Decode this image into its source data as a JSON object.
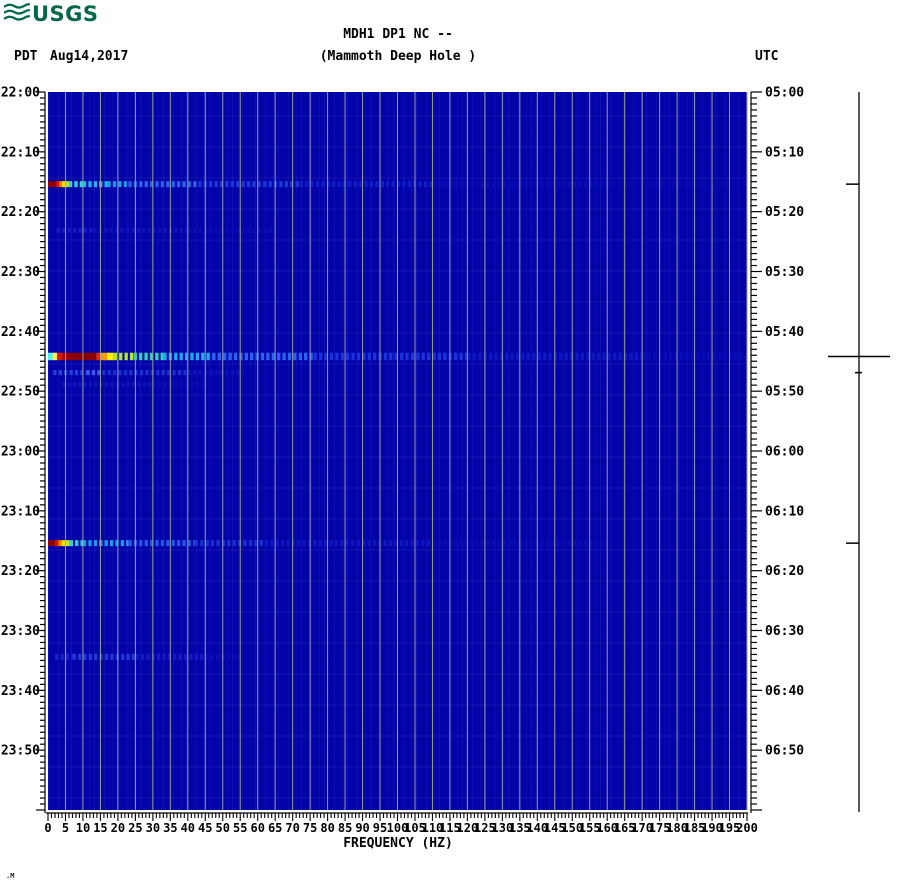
{
  "header": {
    "logo_text": "USGS",
    "tz_left": "PDT",
    "date": "Aug14,2017",
    "title_line1": "MDH1 DP1 NC --",
    "title_line2": "(Mammoth Deep Hole )",
    "tz_right": "UTC"
  },
  "footer": {
    "xaxis_label": "FREQUENCY (HZ)",
    "corner_mark": ".M"
  },
  "colors": {
    "usgs_green": "#00684a",
    "plot_background": "#0303ab",
    "gridline": "#98a098",
    "axis": "#000000"
  },
  "chart_data": {
    "type": "heatmap",
    "title": "MDH1 DP1 NC -- (Mammoth Deep Hole )",
    "xlabel": "FREQUENCY (HZ)",
    "x_range_hz": [
      0,
      200
    ],
    "x_major_tick_step_hz": 5,
    "x_minor_tick_step_hz": 1,
    "x_tick_labels": [
      "0",
      "5",
      "10",
      "15",
      "20",
      "25",
      "30",
      "35",
      "40",
      "45",
      "50",
      "55",
      "60",
      "65",
      "70",
      "75",
      "80",
      "85",
      "90",
      "95",
      "100",
      "105",
      "110",
      "115",
      "120",
      "125",
      "130",
      "135",
      "140",
      "145",
      "150",
      "155",
      "160",
      "165",
      "170",
      "175",
      "180",
      "185",
      "190",
      "195",
      "200"
    ],
    "time_span_minutes": 120,
    "minor_tick_minutes": 1,
    "major_tick_minutes": 10,
    "left_time_labels": [
      "22:00",
      "22:10",
      "22:20",
      "22:30",
      "22:40",
      "22:50",
      "23:00",
      "23:10",
      "23:20",
      "23:30",
      "23:40",
      "23:50"
    ],
    "right_time_labels": [
      "05:00",
      "05:10",
      "05:20",
      "05:30",
      "05:40",
      "05:50",
      "06:00",
      "06:10",
      "06:20",
      "06:30",
      "06:40",
      "06:50"
    ],
    "grid_vertical_every_hz": 5,
    "events": [
      {
        "time_pdt": "22:15",
        "time_utc": "05:15",
        "minutes": 15.4,
        "height": 6,
        "segments": [
          {
            "from": 0,
            "to": 2.3,
            "color": "#8b0000",
            "striped": false
          },
          {
            "from": 2.3,
            "to": 3.2,
            "color": "#d31300",
            "striped": false
          },
          {
            "from": 3.2,
            "to": 4.0,
            "color": "#ff7a00",
            "striped": false
          },
          {
            "from": 4.0,
            "to": 4.9,
            "color": "#ffe400",
            "striped": false
          },
          {
            "from": 4.9,
            "to": 6.0,
            "color": "#a8e83c",
            "striped": false
          },
          {
            "from": 6,
            "to": 10,
            "color": "#2ed4d8",
            "striped": true
          },
          {
            "from": 10,
            "to": 17,
            "color": "#22b4f4",
            "striped": true
          },
          {
            "from": 17,
            "to": 23,
            "color": "#1e96ea",
            "striped": true
          },
          {
            "from": 23,
            "to": 43,
            "color": "#2b62e8",
            "striped": true
          },
          {
            "from": 43,
            "to": 72,
            "color": "#1c38d8",
            "striped": true
          },
          {
            "from": 72,
            "to": 110,
            "color": "#111cc6",
            "striped": true
          },
          {
            "from": 110,
            "to": 160,
            "color": "#0a0db6",
            "striped": true
          },
          {
            "from": 160,
            "to": 200,
            "color": "#0708b0",
            "striped": true
          }
        ]
      },
      {
        "time_pdt": "22:23",
        "time_utc": "05:23",
        "minutes": 23.1,
        "height": 5,
        "segments": [
          {
            "from": 2.5,
            "to": 13,
            "color": "#171ac6",
            "striped": true
          },
          {
            "from": 13,
            "to": 40,
            "color": "#0f12bc",
            "striped": true
          },
          {
            "from": 40,
            "to": 65,
            "color": "#0a0cb2",
            "striped": true
          }
        ]
      },
      {
        "time_pdt": "22:44",
        "time_utc": "05:44",
        "minutes": 44.2,
        "height": 7.5,
        "segments": [
          {
            "from": 0,
            "to": 1.3,
            "color": "#55ecf4",
            "striped": false
          },
          {
            "from": 1.3,
            "to": 2.6,
            "color": "#ffee44",
            "striped": false
          },
          {
            "from": 2.6,
            "to": 4.2,
            "color": "#de1600",
            "striped": false
          },
          {
            "from": 4.2,
            "to": 6,
            "color": "#a40000",
            "striped": false
          },
          {
            "from": 6,
            "to": 13.8,
            "color": "#8b0000",
            "striped": false
          },
          {
            "from": 13.8,
            "to": 15,
            "color": "#e82400",
            "striped": false
          },
          {
            "from": 15,
            "to": 16.8,
            "color": "#ff9a00",
            "striped": false
          },
          {
            "from": 16.8,
            "to": 18.8,
            "color": "#ffee00",
            "striped": false
          },
          {
            "from": 18.8,
            "to": 24.5,
            "color": "#b2e632",
            "striped": true
          },
          {
            "from": 24.5,
            "to": 33,
            "color": "#2fd8b0",
            "striped": true
          },
          {
            "from": 33,
            "to": 47,
            "color": "#21a8f0",
            "striped": true
          },
          {
            "from": 47,
            "to": 76,
            "color": "#2b62f0",
            "striped": true
          },
          {
            "from": 76,
            "to": 120,
            "color": "#1b33d8",
            "striped": true
          },
          {
            "from": 120,
            "to": 170,
            "color": "#0e17c0",
            "striped": true
          },
          {
            "from": 170,
            "to": 200,
            "color": "#090cb6",
            "striped": true
          }
        ]
      },
      {
        "time_pdt": "22:47",
        "time_utc": "05:47",
        "minutes": 46.9,
        "height": 5,
        "segments": [
          {
            "from": 1.5,
            "to": 11,
            "color": "#2240d8",
            "striped": true
          },
          {
            "from": 11,
            "to": 15.5,
            "color": "#3c5eea",
            "striped": true
          },
          {
            "from": 15.5,
            "to": 40,
            "color": "#1c30d0",
            "striped": true
          },
          {
            "from": 40,
            "to": 56,
            "color": "#0e13b8",
            "striped": true
          }
        ]
      },
      {
        "time_pdt": "22:49",
        "time_utc": "05:49",
        "minutes": 48.9,
        "height": 4.5,
        "segments": [
          {
            "from": 4,
            "to": 30,
            "color": "#0e14bc",
            "striped": true
          },
          {
            "from": 30,
            "to": 45,
            "color": "#0a0eb4",
            "striped": true
          }
        ]
      },
      {
        "time_pdt": "23:15",
        "time_utc": "06:15",
        "minutes": 75.4,
        "height": 6,
        "segments": [
          {
            "from": 0,
            "to": 2.0,
            "color": "#8b0000",
            "striped": false
          },
          {
            "from": 2.0,
            "to": 3.0,
            "color": "#d81400",
            "striped": false
          },
          {
            "from": 3.0,
            "to": 3.9,
            "color": "#ff8800",
            "striped": false
          },
          {
            "from": 3.9,
            "to": 4.9,
            "color": "#ffe400",
            "striped": false
          },
          {
            "from": 4.9,
            "to": 6.2,
            "color": "#bce83a",
            "striped": false
          },
          {
            "from": 6.2,
            "to": 10,
            "color": "#2ecede",
            "striped": true
          },
          {
            "from": 10,
            "to": 23,
            "color": "#1a9cea",
            "striped": true
          },
          {
            "from": 23,
            "to": 42,
            "color": "#2856e8",
            "striped": true
          },
          {
            "from": 42,
            "to": 62,
            "color": "#1b30d0",
            "striped": true
          },
          {
            "from": 62,
            "to": 110,
            "color": "#0f17c0",
            "striped": true
          },
          {
            "from": 110,
            "to": 160,
            "color": "#090cb2",
            "striped": true
          }
        ]
      },
      {
        "time_pdt": "23:34",
        "time_utc": "06:34",
        "minutes": 94.4,
        "height": 6,
        "segments": [
          {
            "from": 2,
            "to": 7,
            "color": "#1a22cc",
            "striped": true
          },
          {
            "from": 7,
            "to": 25,
            "color": "#2536dc",
            "striped": true
          },
          {
            "from": 25,
            "to": 45,
            "color": "#141ac4",
            "striped": true
          },
          {
            "from": 45,
            "to": 55,
            "color": "#0b0eb6",
            "striped": true
          }
        ]
      }
    ],
    "event_marker_ticks": [
      {
        "minutes": 15.4,
        "style": "short"
      },
      {
        "minutes": 44.2,
        "style": "long"
      },
      {
        "minutes": 46.9,
        "style": "dot"
      },
      {
        "minutes": 75.4,
        "style": "short"
      }
    ]
  }
}
